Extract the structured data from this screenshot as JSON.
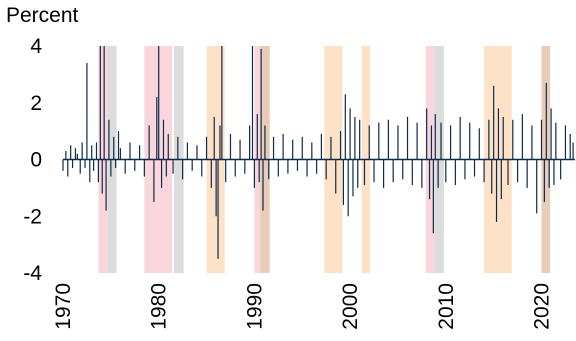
{
  "chart_data": {
    "type": "bar",
    "ylabel": "Percent",
    "ylim": [
      -4,
      4
    ],
    "xlim": [
      1970,
      2023.5
    ],
    "y_ticks": [
      4,
      2,
      0,
      -2,
      -4
    ],
    "y_tick_labels": [
      "4",
      "2",
      "0",
      "-2",
      "-4"
    ],
    "x_ticks": [
      1970,
      1980,
      1990,
      2000,
      2010,
      2020
    ],
    "x_tick_labels": [
      "1970",
      "1980",
      "1990",
      "2000",
      "2010",
      "2020"
    ],
    "grid": false,
    "legend": "none",
    "colors": {
      "series": "#0f2a4a",
      "zero_line": "#0f2a4a",
      "shade_pink": "#f9d6dc",
      "shade_peach": "#fde2c8",
      "shade_gray": "#dcdcdc",
      "shade_tan": "#e8ccb8"
    },
    "shaded_periods": [
      {
        "start": 1973.7,
        "end": 1974.7,
        "color": "pink"
      },
      {
        "start": 1974.7,
        "end": 1975.6,
        "color": "gray"
      },
      {
        "start": 1978.5,
        "end": 1981.4,
        "color": "pink"
      },
      {
        "start": 1981.6,
        "end": 1982.6,
        "color": "gray"
      },
      {
        "start": 1985.0,
        "end": 1986.9,
        "color": "peach"
      },
      {
        "start": 1990.0,
        "end": 1990.6,
        "color": "pink"
      },
      {
        "start": 1990.6,
        "end": 1991.6,
        "color": "tan"
      },
      {
        "start": 1997.3,
        "end": 1999.2,
        "color": "peach"
      },
      {
        "start": 2001.2,
        "end": 2002.1,
        "color": "peach"
      },
      {
        "start": 2007.9,
        "end": 2008.8,
        "color": "pink"
      },
      {
        "start": 2008.8,
        "end": 2009.8,
        "color": "gray"
      },
      {
        "start": 2014.0,
        "end": 2016.9,
        "color": "peach"
      },
      {
        "start": 2020.0,
        "end": 2020.9,
        "color": "tan"
      }
    ],
    "series": [
      {
        "x": [
          1970.0,
          1970.3,
          1970.5,
          1970.8,
          1971.0,
          1971.3,
          1971.5,
          1971.8,
          1972.0,
          1972.3,
          1972.5,
          1972.8,
          1973.0,
          1973.2,
          1973.5,
          1973.7,
          1973.9,
          1974.1,
          1974.3,
          1974.5,
          1974.8,
          1975.0,
          1975.3,
          1975.5,
          1975.8,
          1976.0,
          1976.5,
          1977.0,
          1977.5,
          1978.0,
          1978.5,
          1979.0,
          1979.5,
          1979.8,
          1980.0,
          1980.3,
          1980.5,
          1980.8,
          1981.0,
          1981.5,
          1982.0,
          1982.5,
          1983.0,
          1983.5,
          1984.0,
          1984.5,
          1985.0,
          1985.5,
          1985.8,
          1986.0,
          1986.2,
          1986.4,
          1986.6,
          1987.0,
          1987.5,
          1988.0,
          1988.5,
          1989.0,
          1989.5,
          1989.8,
          1990.0,
          1990.3,
          1990.5,
          1990.7,
          1990.9,
          1991.1,
          1991.5,
          1992.0,
          1992.5,
          1993.0,
          1993.5,
          1994.0,
          1994.5,
          1995.0,
          1995.5,
          1996.0,
          1996.5,
          1997.0,
          1997.5,
          1998.0,
          1998.5,
          1999.0,
          1999.3,
          1999.5,
          1999.8,
          2000.0,
          2000.3,
          2000.5,
          2000.8,
          2001.0,
          2001.5,
          2002.0,
          2002.5,
          2003.0,
          2003.5,
          2004.0,
          2004.5,
          2005.0,
          2005.5,
          2006.0,
          2006.5,
          2007.0,
          2007.5,
          2008.0,
          2008.3,
          2008.5,
          2008.7,
          2008.9,
          2009.2,
          2009.5,
          2010.0,
          2010.5,
          2011.0,
          2011.5,
          2012.0,
          2012.5,
          2013.0,
          2013.5,
          2014.0,
          2014.5,
          2014.8,
          2015.0,
          2015.3,
          2015.5,
          2015.8,
          2016.0,
          2016.5,
          2017.0,
          2017.5,
          2018.0,
          2018.5,
          2019.0,
          2019.5,
          2020.0,
          2020.3,
          2020.5,
          2020.8,
          2021.0,
          2021.3,
          2021.5,
          2022.0,
          2022.5,
          2023.0,
          2023.3
        ],
        "y": [
          -0.4,
          0.3,
          -0.6,
          0.5,
          -0.3,
          0.4,
          0.2,
          -0.5,
          0.6,
          -0.3,
          3.4,
          -0.8,
          0.5,
          -0.4,
          0.6,
          -0.8,
          5.0,
          -1.2,
          4.6,
          -1.8,
          1.4,
          -0.6,
          0.8,
          -0.3,
          1.0,
          0.4,
          -0.5,
          0.6,
          -0.4,
          0.5,
          -0.6,
          1.2,
          -1.5,
          2.2,
          4.2,
          -1.0,
          1.4,
          -0.6,
          0.9,
          -0.5,
          0.8,
          -0.7,
          0.6,
          -0.4,
          0.5,
          -0.6,
          0.8,
          -1.0,
          1.5,
          -2.0,
          -3.5,
          1.2,
          4.6,
          -0.8,
          0.9,
          -0.6,
          0.7,
          -0.5,
          1.2,
          4.1,
          -1.0,
          1.6,
          -0.8,
          3.9,
          -1.8,
          1.2,
          -0.7,
          0.8,
          -0.6,
          0.9,
          -0.5,
          0.7,
          -0.4,
          0.8,
          -0.6,
          0.6,
          -0.5,
          0.9,
          -0.7,
          0.8,
          -1.2,
          1.0,
          -1.6,
          2.3,
          -2.0,
          1.8,
          -1.3,
          1.5,
          -1.0,
          1.4,
          -0.9,
          1.2,
          -0.8,
          1.3,
          -1.0,
          1.4,
          -0.8,
          1.2,
          -0.7,
          1.5,
          -0.9,
          1.3,
          -1.0,
          1.8,
          -1.4,
          1.2,
          -2.6,
          1.6,
          -1.0,
          1.3,
          -0.8,
          1.2,
          -0.9,
          1.5,
          -0.7,
          1.3,
          -0.6,
          1.1,
          -0.8,
          1.4,
          -1.2,
          2.6,
          -2.2,
          1.8,
          -1.4,
          1.5,
          -0.9,
          1.4,
          -0.8,
          1.6,
          -1.0,
          1.2,
          -1.9,
          1.4,
          -1.5,
          2.7,
          -1.0,
          1.8,
          -0.9,
          1.3,
          -0.7,
          1.2,
          0.9,
          0.6
        ]
      }
    ]
  }
}
